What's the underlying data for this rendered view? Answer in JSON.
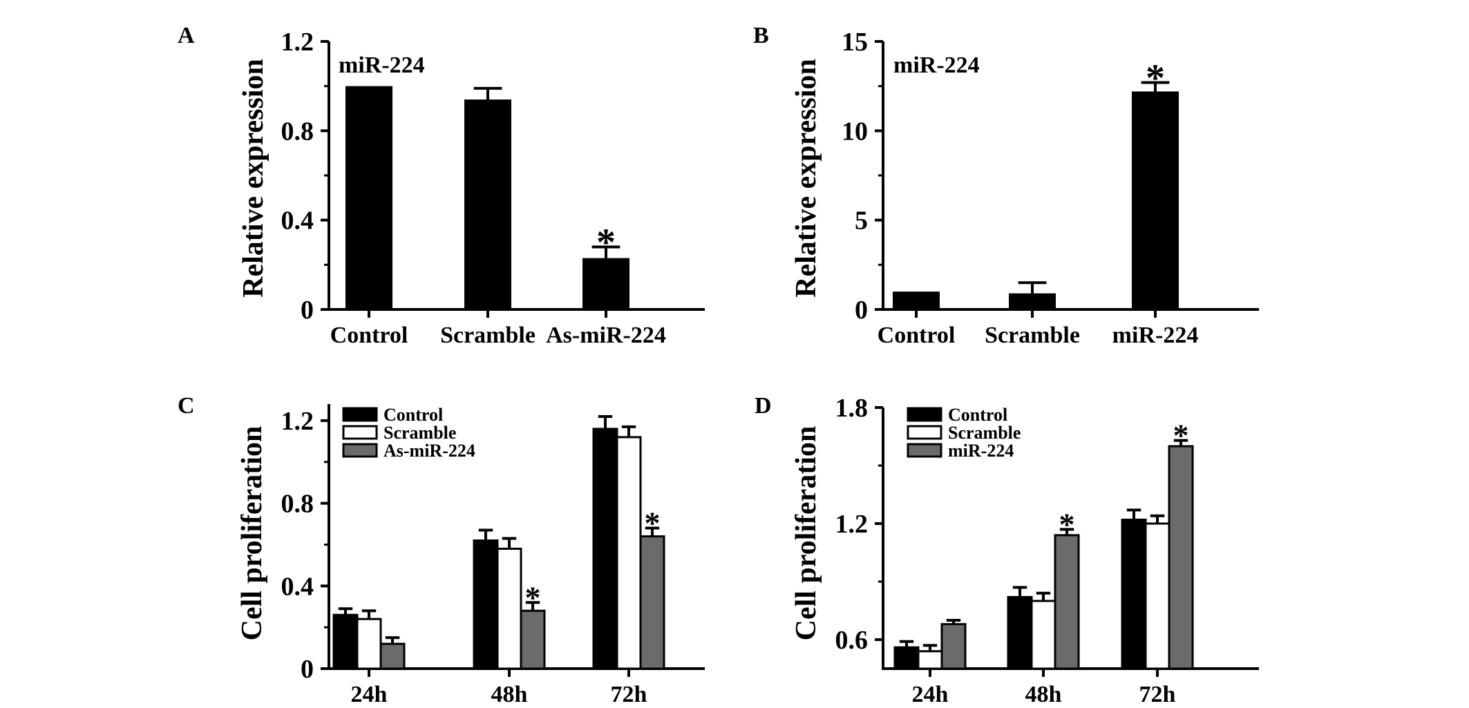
{
  "chart_data": [
    {
      "panel": "A",
      "type": "bar",
      "ylabel": "Relative expression",
      "annotation": "miR-224",
      "categories": [
        "Control",
        "Scramble",
        "As-miR-224"
      ],
      "values": [
        1.0,
        0.94,
        0.23
      ],
      "errors": [
        0.0,
        0.05,
        0.05
      ],
      "significant": [
        false,
        false,
        true
      ],
      "ylim": [
        0,
        1.2
      ],
      "yticks": [
        0,
        0.4,
        0.8,
        1.2
      ],
      "ytick_labels": [
        "0",
        "0.4",
        "0.8",
        "1.2"
      ],
      "color": "#000000"
    },
    {
      "panel": "B",
      "type": "bar",
      "ylabel": "Relative expression",
      "annotation": "miR-224",
      "categories": [
        "Control",
        "Scramble",
        "miR-224"
      ],
      "values": [
        1.0,
        0.9,
        12.2
      ],
      "errors": [
        0.0,
        0.6,
        0.5
      ],
      "significant": [
        false,
        false,
        true
      ],
      "ylim": [
        0,
        15
      ],
      "yticks": [
        0,
        5,
        10,
        15
      ],
      "ytick_labels": [
        "0",
        "5",
        "10",
        "15"
      ],
      "color": "#000000"
    },
    {
      "panel": "C",
      "type": "bar",
      "ylabel": "Cell proliferation",
      "categories": [
        "24h",
        "48h",
        "72h"
      ],
      "series": [
        {
          "name": "Control",
          "color": "#000000",
          "values": [
            0.26,
            0.62,
            1.16
          ],
          "errors": [
            0.03,
            0.05,
            0.06
          ],
          "significant": [
            false,
            false,
            false
          ]
        },
        {
          "name": "Scramble",
          "color": "#ffffff",
          "values": [
            0.24,
            0.58,
            1.12
          ],
          "errors": [
            0.04,
            0.05,
            0.05
          ],
          "significant": [
            false,
            false,
            false
          ]
        },
        {
          "name": "As-miR-224",
          "color": "#6b6b6b",
          "values": [
            0.12,
            0.28,
            0.64
          ],
          "errors": [
            0.03,
            0.04,
            0.04
          ],
          "significant": [
            false,
            true,
            true
          ]
        }
      ],
      "ylim": [
        0,
        1.28
      ],
      "yticks": [
        0,
        0.4,
        0.8,
        1.2
      ],
      "ytick_labels": [
        "0",
        "0.4",
        "0.8",
        "1.2"
      ],
      "legend": "top-left"
    },
    {
      "panel": "D",
      "type": "bar",
      "ylabel": "Cell proliferation",
      "categories": [
        "24h",
        "48h",
        "72h"
      ],
      "series": [
        {
          "name": "Control",
          "color": "#000000",
          "values": [
            0.56,
            0.82,
            1.22
          ],
          "errors": [
            0.03,
            0.05,
            0.05
          ],
          "significant": [
            false,
            false,
            false
          ]
        },
        {
          "name": "Scramble",
          "color": "#ffffff",
          "values": [
            0.54,
            0.8,
            1.2
          ],
          "errors": [
            0.03,
            0.04,
            0.04
          ],
          "significant": [
            false,
            false,
            false
          ]
        },
        {
          "name": "miR-224",
          "color": "#6b6b6b",
          "values": [
            0.68,
            1.14,
            1.6
          ],
          "errors": [
            0.02,
            0.03,
            0.03
          ],
          "significant": [
            false,
            true,
            true
          ]
        }
      ],
      "ylim": [
        0.45,
        1.8
      ],
      "yticks": [
        0.6,
        1.2,
        1.8
      ],
      "ytick_labels": [
        "0.6",
        "1.2",
        "1.8"
      ],
      "legend": "top-left"
    }
  ]
}
